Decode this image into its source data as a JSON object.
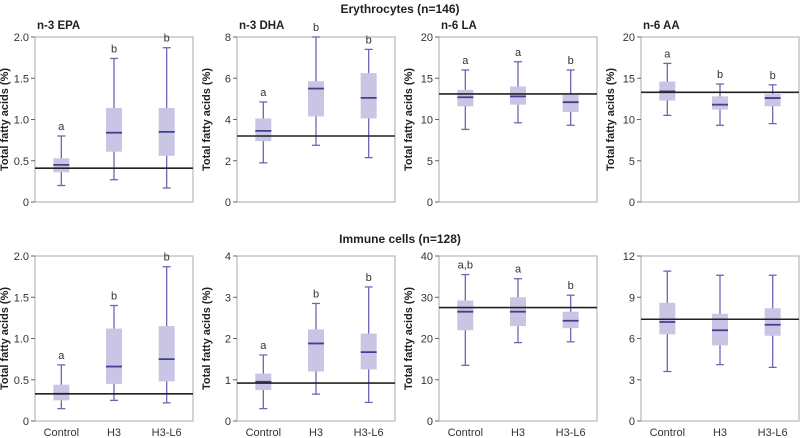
{
  "colors": {
    "box": "#c9c5e5",
    "whisker": "#6e66b4",
    "median": "#453e8f",
    "ref_line": "#222222",
    "frame": "#aaaaaa"
  },
  "sections": [
    {
      "title": "Erythrocytes (n=146)"
    },
    {
      "title": "Immune cells (n=128)"
    }
  ],
  "chart_data": [
    {
      "type": "boxplot",
      "section": 0,
      "title": "n-3 EPA",
      "ylabel": "Total fatty acids (%)",
      "categories": [
        "Control",
        "H3",
        "H3-L6"
      ],
      "show_categories": false,
      "ylim": [
        0,
        2.0
      ],
      "yticks": [
        "0",
        "0.5",
        "1.0",
        "1.5",
        "2.0"
      ],
      "yticks_values": [
        0,
        0.5,
        1.0,
        1.5,
        2.0
      ],
      "ref_line": 0.41,
      "boxes": [
        {
          "min": 0.2,
          "q1": 0.36,
          "median": 0.45,
          "q3": 0.53,
          "max": 0.8,
          "label": "a"
        },
        {
          "min": 0.27,
          "q1": 0.61,
          "median": 0.84,
          "q3": 1.14,
          "max": 1.74,
          "label": "b"
        },
        {
          "min": 0.17,
          "q1": 0.56,
          "median": 0.85,
          "q3": 1.14,
          "max": 1.87,
          "label": "b"
        }
      ]
    },
    {
      "type": "boxplot",
      "section": 0,
      "title": "n-3 DHA",
      "ylabel": "Total fatty acids (%)",
      "categories": [
        "Control",
        "H3",
        "H3-L6"
      ],
      "show_categories": false,
      "ylim": [
        0,
        8
      ],
      "yticks": [
        "0",
        "2",
        "4",
        "6",
        "8"
      ],
      "yticks_values": [
        0,
        2,
        4,
        6,
        8
      ],
      "ref_line": 3.2,
      "boxes": [
        {
          "min": 1.9,
          "q1": 2.95,
          "median": 3.45,
          "q3": 4.05,
          "max": 4.85,
          "label": "a"
        },
        {
          "min": 2.75,
          "q1": 4.15,
          "median": 5.5,
          "q3": 5.85,
          "max": 8.0,
          "label": "b"
        },
        {
          "min": 2.15,
          "q1": 4.05,
          "median": 5.05,
          "q3": 6.25,
          "max": 7.4,
          "label": "b"
        }
      ]
    },
    {
      "type": "boxplot",
      "section": 0,
      "title": "n-6 LA",
      "ylabel": "Total fatty acids (%)",
      "categories": [
        "Control",
        "H3",
        "H3-L6"
      ],
      "show_categories": false,
      "ylim": [
        0,
        20
      ],
      "yticks": [
        "0",
        "5",
        "10",
        "15",
        "20"
      ],
      "yticks_values": [
        0,
        5,
        10,
        15,
        20
      ],
      "ref_line": 13.1,
      "boxes": [
        {
          "min": 8.8,
          "q1": 11.6,
          "median": 12.7,
          "q3": 13.6,
          "max": 16.0,
          "label": "a"
        },
        {
          "min": 9.6,
          "q1": 11.8,
          "median": 12.8,
          "q3": 14.0,
          "max": 17.0,
          "label": "a"
        },
        {
          "min": 9.3,
          "q1": 10.9,
          "median": 12.1,
          "q3": 13.0,
          "max": 16.0,
          "label": "b"
        }
      ]
    },
    {
      "type": "boxplot",
      "section": 0,
      "title": "n-6 AA",
      "ylabel": "Total fatty acids (%)",
      "categories": [
        "Control",
        "H3",
        "H3-L6"
      ],
      "show_categories": false,
      "ylim": [
        0,
        20
      ],
      "yticks": [
        "0",
        "5",
        "10",
        "15",
        "20"
      ],
      "yticks_values": [
        0,
        5,
        10,
        15,
        20
      ],
      "ref_line": 13.3,
      "boxes": [
        {
          "min": 10.5,
          "q1": 12.3,
          "median": 13.4,
          "q3": 14.6,
          "max": 16.8,
          "label": "a"
        },
        {
          "min": 9.3,
          "q1": 11.2,
          "median": 11.8,
          "q3": 12.8,
          "max": 14.3,
          "label": "b"
        },
        {
          "min": 9.5,
          "q1": 11.6,
          "median": 12.6,
          "q3": 13.1,
          "max": 14.2,
          "label": "b"
        }
      ]
    },
    {
      "type": "boxplot",
      "section": 1,
      "title": "",
      "ylabel": "Total fatty acids (%)",
      "categories": [
        "Control",
        "H3",
        "H3-L6"
      ],
      "show_categories": true,
      "ylim": [
        0,
        2.0
      ],
      "yticks": [
        "0",
        "0.5",
        "1.0",
        "1.5",
        "2.0"
      ],
      "yticks_values": [
        0,
        0.5,
        1.0,
        1.5,
        2.0
      ],
      "ref_line": 0.33,
      "boxes": [
        {
          "min": 0.15,
          "q1": 0.25,
          "median": 0.33,
          "q3": 0.44,
          "max": 0.68,
          "label": "a"
        },
        {
          "min": 0.25,
          "q1": 0.45,
          "median": 0.66,
          "q3": 1.12,
          "max": 1.4,
          "label": "b"
        },
        {
          "min": 0.22,
          "q1": 0.48,
          "median": 0.75,
          "q3": 1.15,
          "max": 1.87,
          "label": "b"
        }
      ]
    },
    {
      "type": "boxplot",
      "section": 1,
      "title": "",
      "ylabel": "Total fatty acids (%)",
      "categories": [
        "Control",
        "H3",
        "H3-L6"
      ],
      "show_categories": true,
      "ylim": [
        0,
        4
      ],
      "yticks": [
        "0",
        "1",
        "2",
        "3",
        "4"
      ],
      "yticks_values": [
        0,
        1,
        2,
        3,
        4
      ],
      "ref_line": 0.92,
      "boxes": [
        {
          "min": 0.3,
          "q1": 0.75,
          "median": 0.95,
          "q3": 1.15,
          "max": 1.6,
          "label": "a"
        },
        {
          "min": 0.65,
          "q1": 1.2,
          "median": 1.88,
          "q3": 2.22,
          "max": 2.85,
          "label": "b"
        },
        {
          "min": 0.45,
          "q1": 1.25,
          "median": 1.67,
          "q3": 2.12,
          "max": 3.25,
          "label": "b"
        }
      ]
    },
    {
      "type": "boxplot",
      "section": 1,
      "title": "",
      "ylabel": "Total fatty acids (%)",
      "categories": [
        "Control",
        "H3",
        "H3-L6"
      ],
      "show_categories": true,
      "ylim": [
        0,
        40
      ],
      "yticks": [
        "0",
        "10",
        "20",
        "30",
        "40"
      ],
      "yticks_values": [
        0,
        10,
        20,
        30,
        40
      ],
      "ref_line": 27.5,
      "boxes": [
        {
          "min": 13.5,
          "q1": 22.0,
          "median": 26.5,
          "q3": 29.2,
          "max": 35.5,
          "label": "a,b"
        },
        {
          "min": 19.0,
          "q1": 23.0,
          "median": 26.5,
          "q3": 30.0,
          "max": 34.5,
          "label": "a"
        },
        {
          "min": 19.2,
          "q1": 22.5,
          "median": 24.3,
          "q3": 26.5,
          "max": 30.5,
          "label": "b"
        }
      ]
    },
    {
      "type": "boxplot",
      "section": 1,
      "title": "",
      "ylabel": "",
      "categories": [
        "Control",
        "H3",
        "H3-L6"
      ],
      "show_categories": true,
      "ylim": [
        0,
        12
      ],
      "yticks": [
        "0",
        "3",
        "6",
        "9",
        "12"
      ],
      "yticks_values": [
        0,
        3,
        6,
        9,
        12
      ],
      "ref_line": 7.4,
      "boxes": [
        {
          "min": 3.6,
          "q1": 6.3,
          "median": 7.2,
          "q3": 8.6,
          "max": 10.9,
          "label": ""
        },
        {
          "min": 4.1,
          "q1": 5.5,
          "median": 6.6,
          "q3": 7.8,
          "max": 10.6,
          "label": ""
        },
        {
          "min": 3.9,
          "q1": 6.2,
          "median": 7.0,
          "q3": 8.2,
          "max": 10.6,
          "label": ""
        }
      ]
    }
  ]
}
